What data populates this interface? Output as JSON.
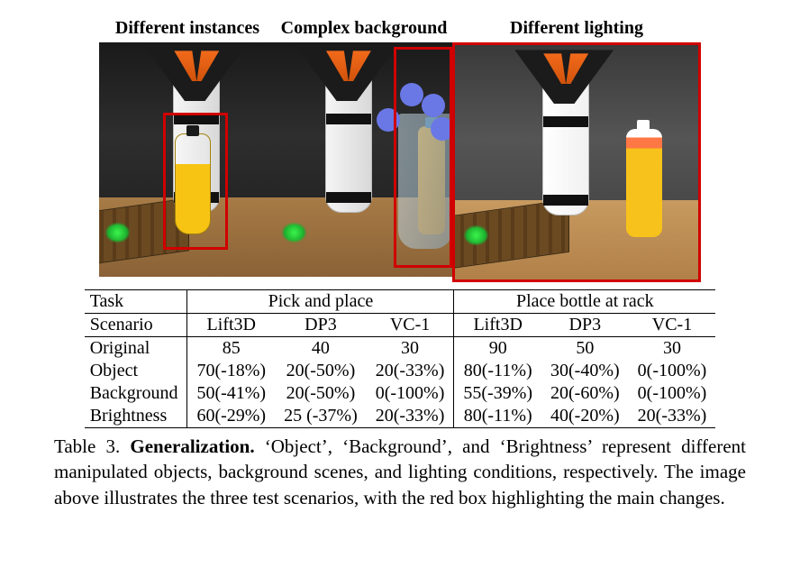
{
  "figure": {
    "panels": [
      {
        "title": "Different instances"
      },
      {
        "title": "Complex background"
      },
      {
        "title": "Different lighting"
      }
    ],
    "highlight_color": "#d00000"
  },
  "table": {
    "header_task": "Task",
    "header_scenario": "Scenario",
    "tasks": [
      "Pick and place",
      "Place bottle at rack"
    ],
    "methods": [
      "Lift3D",
      "DP3",
      "VC-1"
    ],
    "rows": [
      {
        "label": "Original",
        "cells": [
          "85",
          "40",
          "30",
          "90",
          "50",
          "30"
        ]
      },
      {
        "label": "Object",
        "cells": [
          "70(-18%)",
          "20(-50%)",
          "20(-33%)",
          "80(-11%)",
          "30(-40%)",
          "0(-100%)"
        ]
      },
      {
        "label": "Background",
        "cells": [
          "50(-41%)",
          "20(-50%)",
          "0(-100%)",
          "55(-39%)",
          "20(-60%)",
          "0(-100%)"
        ]
      },
      {
        "label": "Brightness",
        "cells": [
          "60(-29%)",
          "25 (-37%)",
          "20(-33%)",
          "80(-11%)",
          "40(-20%)",
          "20(-33%)"
        ]
      }
    ],
    "font_size": 20,
    "border_color": "#000000"
  },
  "caption": {
    "label": "Table 3.",
    "title": "Generalization.",
    "text": "‘Object’, ‘Background’, and ‘Brightness’ represent different manipulated objects, background scenes, and lighting conditions, respectively. The image above illustrates the three test scenarios, with the red box highlighting the main changes."
  }
}
